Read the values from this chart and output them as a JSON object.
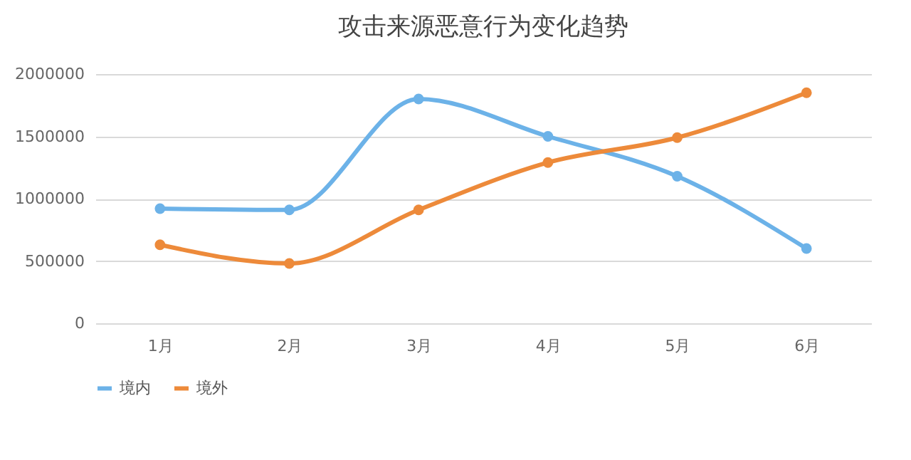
{
  "chart_data": {
    "type": "line",
    "title": "攻击来源恶意行为变化趋势",
    "categories": [
      "1月",
      "2月",
      "3月",
      "4月",
      "5月",
      "6月"
    ],
    "series": [
      {
        "name": "境内",
        "color": "#6cb2e8",
        "values": [
          920000,
          910000,
          1800000,
          1500000,
          1180000,
          600000
        ]
      },
      {
        "name": "境外",
        "color": "#ed8a3a",
        "values": [
          630000,
          480000,
          910000,
          1290000,
          1490000,
          1850000
        ]
      }
    ],
    "ylim": [
      0,
      2000000
    ],
    "yticks": [
      0,
      500000,
      1000000,
      1500000,
      2000000
    ],
    "grid": "y",
    "legend": "bottom",
    "marker": "circle",
    "line_style": "solid"
  }
}
